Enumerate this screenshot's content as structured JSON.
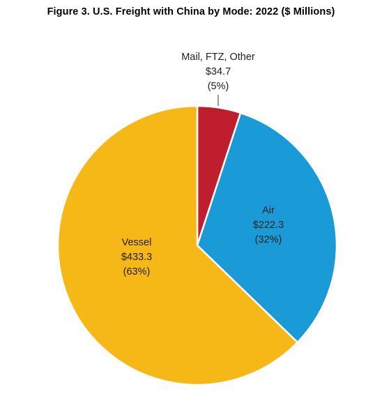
{
  "chart_data": {
    "type": "pie",
    "title": "Figure 3. U.S. Freight with China by Mode: 2022 ($ Millions)",
    "slices": [
      {
        "name": "Mail, FTZ, Other",
        "value": 34.7,
        "value_label": "$34.7",
        "percent_label": "(5%)",
        "color": "#be1e2d"
      },
      {
        "name": "Air",
        "value": 222.3,
        "value_label": "$222.3",
        "percent_label": "(32%)",
        "color": "#1a9ad6"
      },
      {
        "name": "Vessel",
        "value": 433.3,
        "value_label": "$433.3",
        "percent_label": "(63%)",
        "color": "#f6b817"
      }
    ],
    "start_angle": "12 o'clock",
    "direction": "clockwise",
    "border_color": "#ffffff"
  }
}
